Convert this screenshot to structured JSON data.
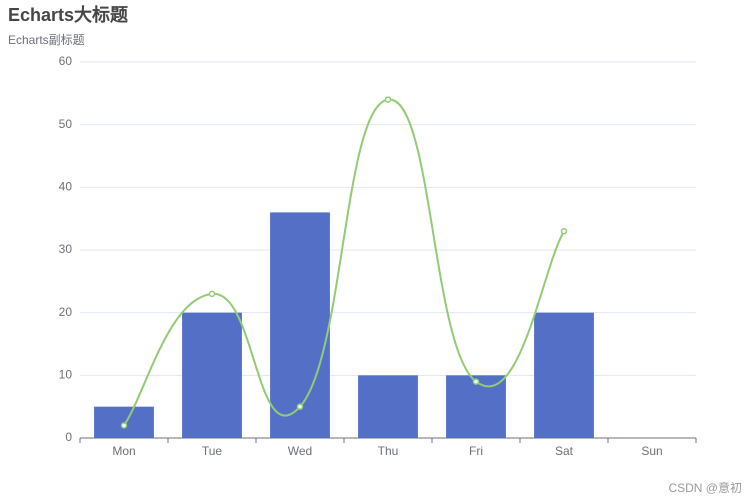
{
  "chart_data": {
    "type": "bar",
    "title": "Echarts大标题",
    "subtitle": "Echarts副标题",
    "categories": [
      "Mon",
      "Tue",
      "Wed",
      "Thu",
      "Fri",
      "Sat",
      "Sun"
    ],
    "series": [
      {
        "type": "bar",
        "color": "#5470c6",
        "values": [
          5,
          20,
          36,
          10,
          10,
          20,
          null
        ]
      },
      {
        "type": "line",
        "smooth": true,
        "color": "#91cc75",
        "values": [
          2,
          23,
          5,
          54,
          9,
          33,
          null
        ]
      }
    ],
    "ylim": [
      0,
      60
    ],
    "yticks": [
      0,
      10,
      20,
      30,
      40,
      50,
      60
    ],
    "grid": true
  },
  "watermark": "CSDN @意初"
}
